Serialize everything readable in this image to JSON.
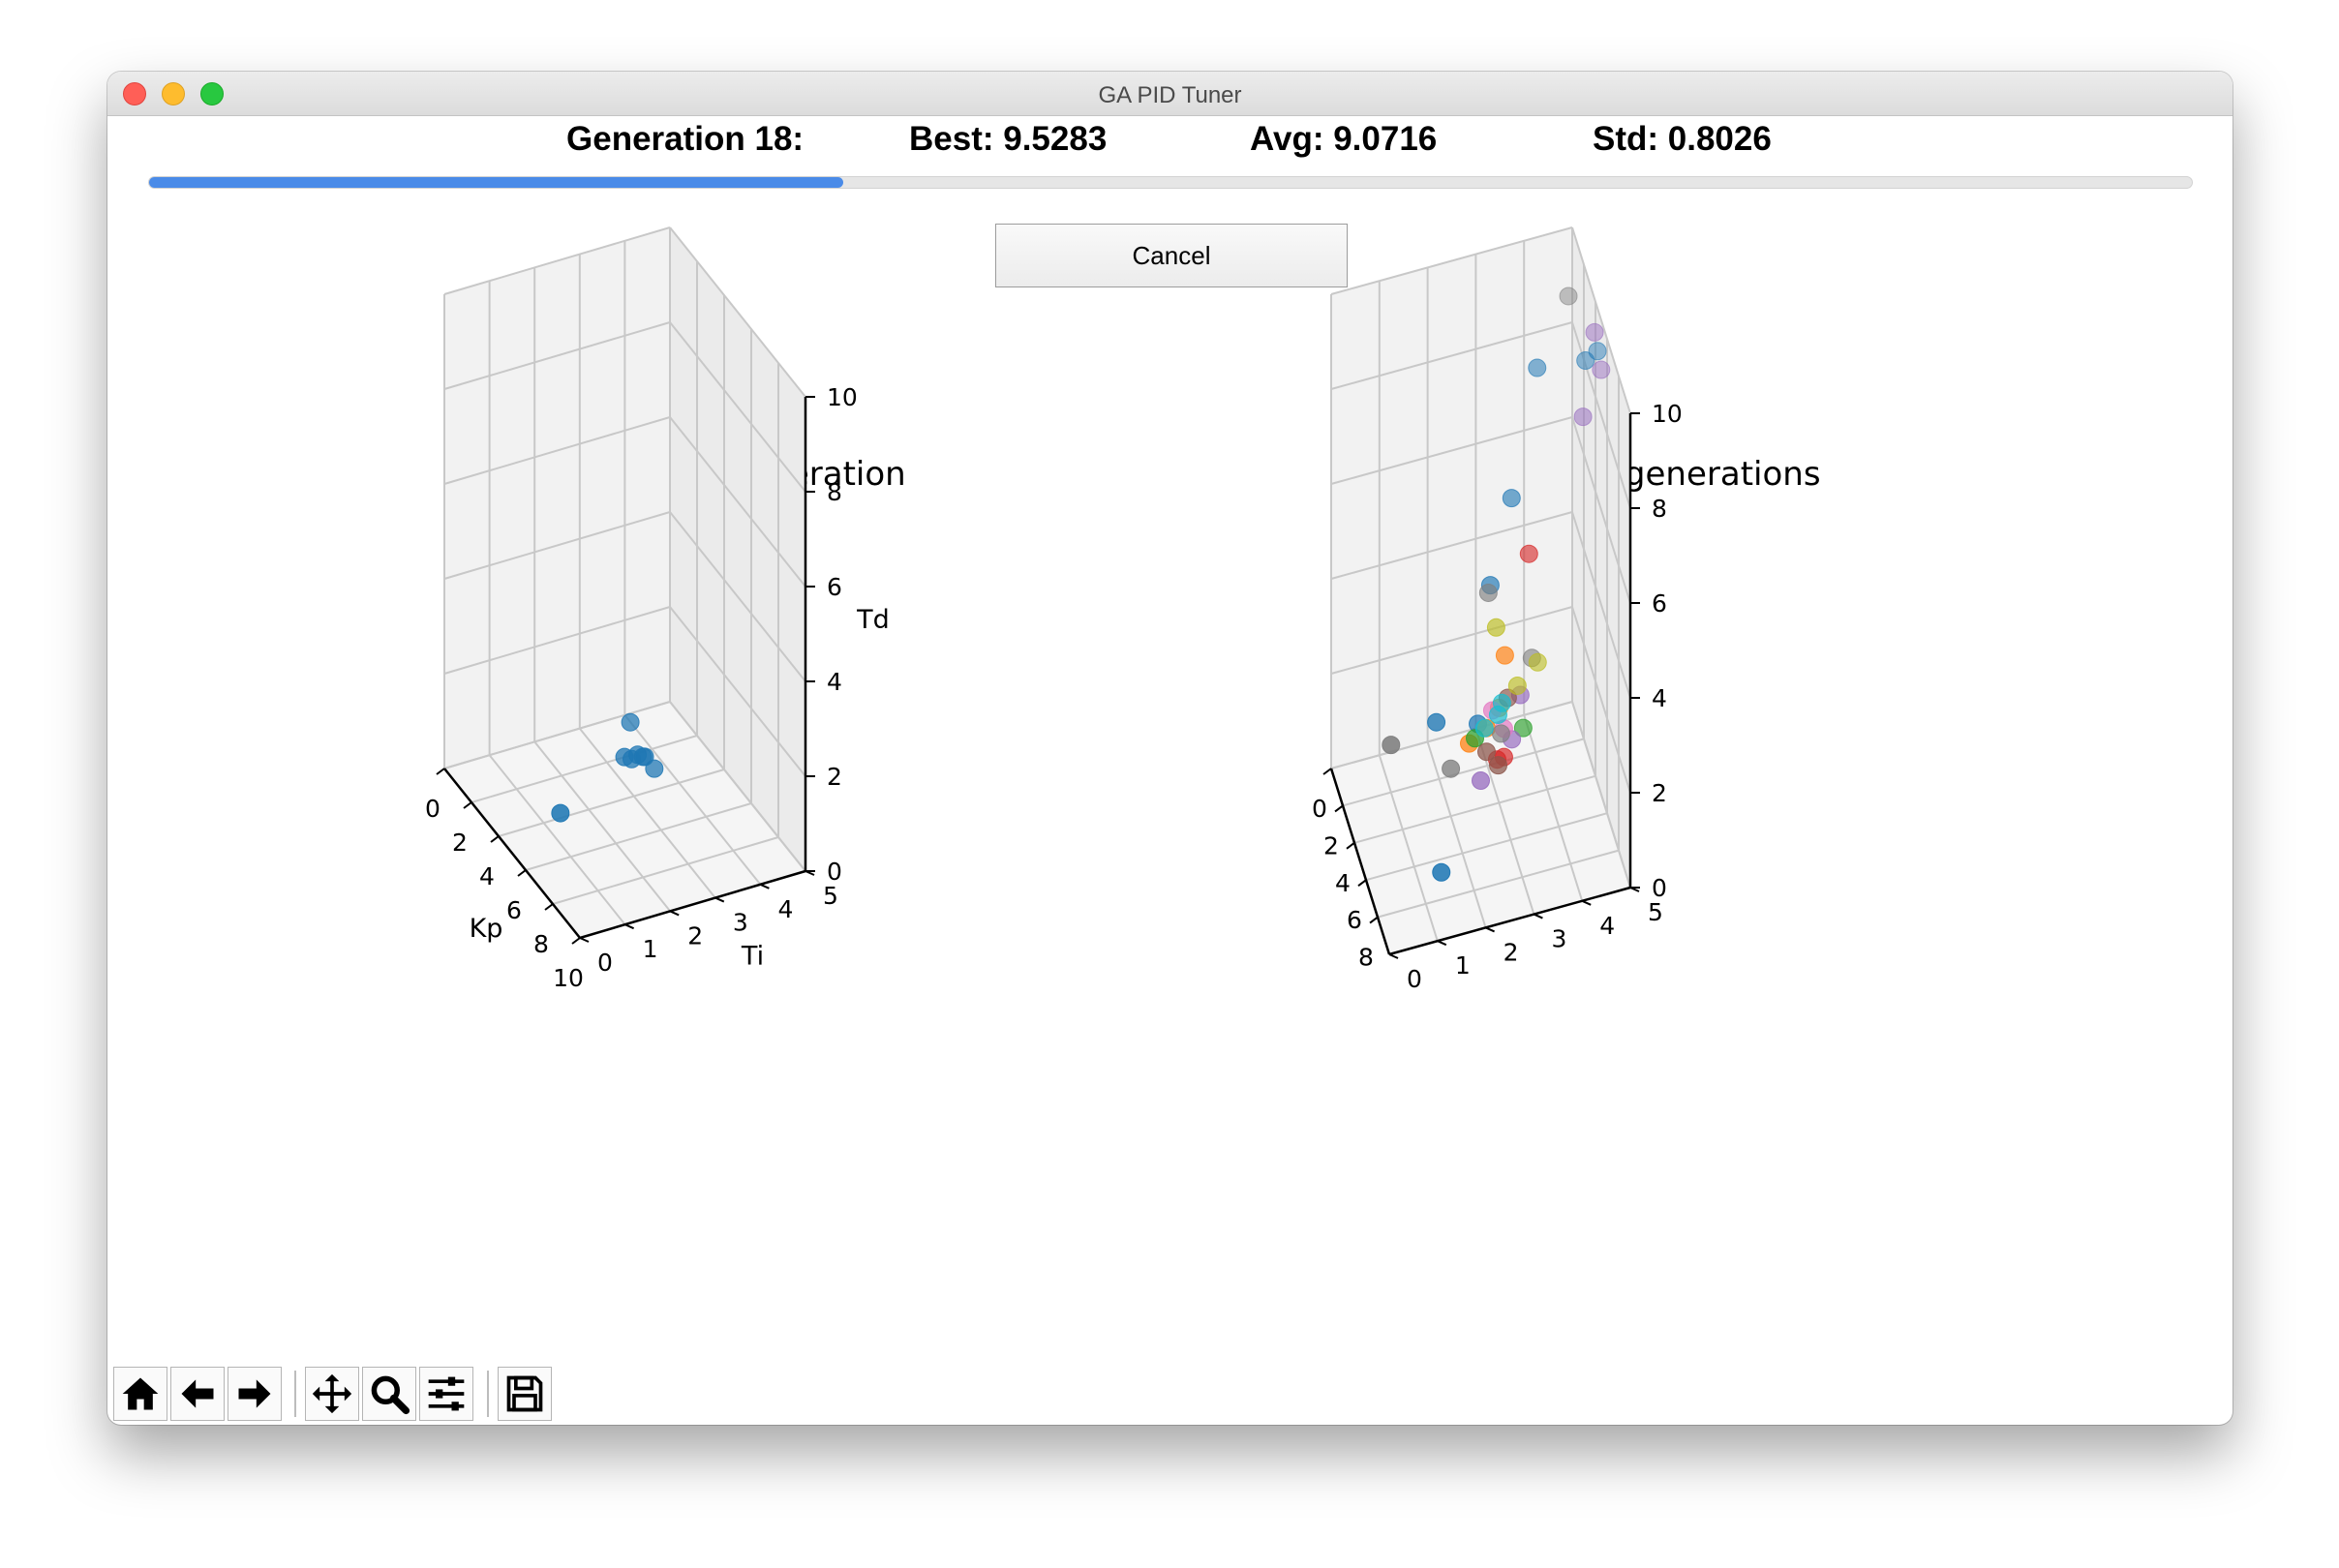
{
  "window": {
    "title": "GA PID Tuner"
  },
  "stats": {
    "generation": "Generation 18:",
    "best": "Best: 9.5283",
    "avg": "Avg: 9.0716",
    "std": "Std: 0.8026"
  },
  "progress": {
    "value": 0.34,
    "color": "#4a8be8"
  },
  "cancel_label": "Cancel",
  "toolbar": {
    "buttons": [
      "home-icon",
      "back-arrow-icon",
      "forward-arrow-icon",
      "pan-icon",
      "zoom-icon",
      "configure-subplots-icon",
      "save-icon"
    ]
  },
  "chart_data": [
    {
      "type": "scatter",
      "subtype": "scatter3d",
      "title": "Current generation",
      "xlabel": "Kp",
      "ylabel": "Ti",
      "zlabel": "Td",
      "xlim": [
        0,
        10
      ],
      "ylim": [
        0,
        5
      ],
      "zlim": [
        0,
        10
      ],
      "x_ticks": [
        "0",
        "2",
        "4",
        "6",
        "8",
        "10"
      ],
      "y_ticks": [
        "0",
        "1",
        "2",
        "3",
        "4",
        "5"
      ],
      "z_ticks": [
        "0",
        "2",
        "4",
        "6",
        "8",
        "10"
      ],
      "grid": true,
      "series": [
        {
          "color": "#1f77b4",
          "points": [
            [
              4.9,
              1.1,
              0.5
            ],
            [
              6.3,
              2.1,
              1.9
            ],
            [
              7.5,
              2.4,
              2.0
            ],
            [
              6.5,
              2.2,
              1.9
            ],
            [
              6.6,
              2.3,
              2.0
            ],
            [
              7.0,
              2.3,
              2.1
            ],
            [
              5.4,
              2.5,
              2.2
            ],
            [
              6.8,
              2.4,
              2.0
            ]
          ]
        }
      ]
    },
    {
      "type": "scatter",
      "subtype": "scatter3d",
      "title": "Previous generations",
      "x_ticks": [
        "0",
        "2",
        "4",
        "6",
        "8"
      ],
      "y_ticks": [
        "0",
        "1",
        "2",
        "3",
        "4",
        "5"
      ],
      "z_ticks": [
        "0",
        "2",
        "4",
        "6",
        "8",
        "10"
      ],
      "xlim": [
        0,
        10
      ],
      "ylim": [
        0,
        5
      ],
      "zlim": [
        0,
        10
      ],
      "grid": true,
      "series": [
        {
          "color": "#1f77b4",
          "points": [
            [
              1.5,
              2.0,
              1.0
            ],
            [
              2.5,
              3.0,
              4.0
            ],
            [
              6.0,
              4.8,
              9.8
            ],
            [
              5.6,
              4.6,
              9.5
            ],
            [
              9.0,
              1.2,
              1.0
            ],
            [
              4.5,
              2.5,
              2.0
            ],
            [
              2.0,
              3.5,
              5.5
            ],
            [
              0.6,
              4.2,
              7.5
            ]
          ]
        },
        {
          "color": "#ff7f0e",
          "points": [
            [
              3.0,
              2.5,
              1.0
            ],
            [
              4.0,
              3.0,
              2.0
            ],
            [
              6.0,
              2.5,
              2.5
            ],
            [
              5.0,
              3.0,
              3.5
            ]
          ]
        },
        {
          "color": "#2ca02c",
          "points": [
            [
              4.0,
              2.5,
              1.5
            ],
            [
              6.5,
              3.2,
              2.5
            ]
          ]
        },
        {
          "color": "#d62728",
          "points": [
            [
              5.0,
              3.5,
              5.5
            ],
            [
              6.5,
              2.8,
              2.0
            ],
            [
              7.0,
              2.6,
              2.2
            ]
          ]
        },
        {
          "color": "#9467bd",
          "points": [
            [
              5.5,
              4.8,
              10.0
            ],
            [
              5.8,
              4.9,
              9.3
            ],
            [
              6.0,
              4.5,
              8.5
            ],
            [
              6.2,
              3.0,
              2.2
            ],
            [
              5.0,
              2.5,
              1.0
            ],
            [
              6.0,
              3.2,
              3.0
            ]
          ]
        },
        {
          "color": "#8c564b",
          "points": [
            [
              6.0,
              2.5,
              2.0
            ],
            [
              8.0,
              2.5,
              2.5
            ],
            [
              5.5,
              3.0,
              2.8
            ]
          ]
        },
        {
          "color": "#e377c2",
          "points": [
            [
              4.5,
              2.8,
              2.2
            ],
            [
              6.5,
              2.8,
              2.6
            ]
          ]
        },
        {
          "color": "#7f7f7f",
          "points": [
            [
              1.0,
              4.8,
              9.0
            ],
            [
              4.0,
              2.0,
              1.0
            ],
            [
              2.0,
              1.0,
              1.0
            ],
            [
              0.5,
              3.2,
              3.0
            ],
            [
              6.0,
              2.8,
              2.3
            ],
            [
              5.5,
              3.5,
              3.5
            ]
          ]
        },
        {
          "color": "#bcbd22",
          "points": [
            [
              3.5,
              3.0,
              3.5
            ],
            [
              6.5,
              3.5,
              3.8
            ],
            [
              5.5,
              3.2,
              3.0
            ]
          ]
        },
        {
          "color": "#17becf",
          "points": [
            [
              4.5,
              3.0,
              2.3
            ],
            [
              4.8,
              2.6,
              2.0
            ],
            [
              5.5,
              2.8,
              2.5
            ]
          ]
        }
      ]
    }
  ]
}
